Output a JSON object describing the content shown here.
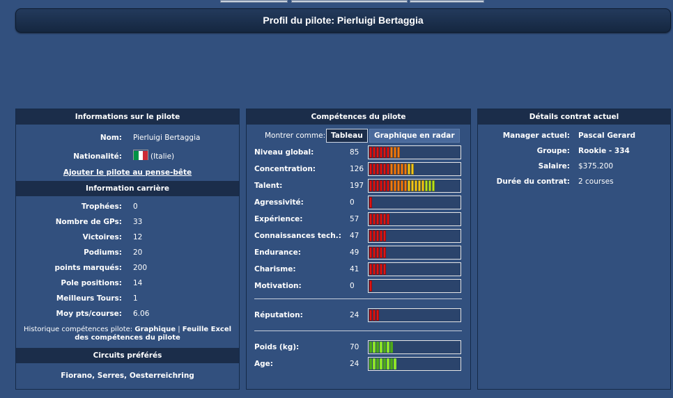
{
  "title": "Profil du pilote: Pierluigi Bertaggia",
  "driver_info": {
    "header": "Informations sur le pilote",
    "name_label": "Nom:",
    "name_value": "Pierluigi Bertaggia",
    "nationality_label": "Nationalité:",
    "nationality_value": "(Italie)",
    "flag_colors": [
      "#009246",
      "#ffffff",
      "#ce2b37"
    ],
    "add_link": "Ajouter le pilote au pense-bête"
  },
  "career": {
    "header": "Information carrière",
    "rows": [
      {
        "label": "Trophées:",
        "value": "0"
      },
      {
        "label": "Nombre de GPs:",
        "value": "33"
      },
      {
        "label": "Victoires:",
        "value": "12"
      },
      {
        "label": "Podiums:",
        "value": "20"
      },
      {
        "label": "points marqués:",
        "value": "200"
      },
      {
        "label": "Pole positions:",
        "value": "14"
      },
      {
        "label": "Meilleurs Tours:",
        "value": "1"
      },
      {
        "label": "Moy pts/course:",
        "value": "6.06"
      }
    ],
    "history_prefix": "Historique compétences pilote:",
    "history_graph_link": "Graphique",
    "history_separator": "|",
    "history_excel_link": "Feuille Excel des compétences du pilote"
  },
  "circuits": {
    "header": "Circuits préférés",
    "value": "Fiorano, Serres, Oesterreichring"
  },
  "skills": {
    "header": "Compétences du pilote",
    "show_as_label": "Montrer comme:",
    "tab_table": "Tableau",
    "tab_radar": "Graphique en radar",
    "rows": [
      {
        "name": "Niveau global:",
        "value": "85",
        "level": 0.34,
        "color": "skill"
      },
      {
        "name": "Concentration:",
        "value": "126",
        "level": 0.5,
        "color": "skill"
      },
      {
        "name": "Talent:",
        "value": "197",
        "level": 0.75,
        "color": "skill"
      },
      {
        "name": "Agressivité:",
        "value": "0",
        "level": 0.0,
        "color": "skill"
      },
      {
        "name": "Expérience:",
        "value": "57",
        "level": 0.23,
        "color": "skill"
      },
      {
        "name": "Connaissances tech.:",
        "value": "47",
        "level": 0.19,
        "color": "skill"
      },
      {
        "name": "Endurance:",
        "value": "49",
        "level": 0.19,
        "color": "skill"
      },
      {
        "name": "Charisme:",
        "value": "41",
        "level": 0.19,
        "color": "skill"
      },
      {
        "name": "Motivation:",
        "value": "0",
        "level": 0.0,
        "color": "skill"
      }
    ],
    "reputation": {
      "name": "Réputation:",
      "value": "24",
      "level": 0.11,
      "color": "skill"
    },
    "physical": [
      {
        "name": "Poids (kg):",
        "value": "70",
        "level": 0.27,
        "color": "green"
      },
      {
        "name": "Age:",
        "value": "24",
        "level": 0.31,
        "color": "green"
      }
    ]
  },
  "contract": {
    "header": "Détails contrat actuel",
    "rows": [
      {
        "label": "Manager actuel:",
        "value": "Pascal Gerard",
        "bold": true
      },
      {
        "label": "Groupe:",
        "value": "Rookie - 334",
        "bold": true
      },
      {
        "label": "Salaire:",
        "value": "$375.200",
        "bold": false
      },
      {
        "label": "Durée du contrat:",
        "value": "2 courses",
        "bold": false
      }
    ]
  }
}
